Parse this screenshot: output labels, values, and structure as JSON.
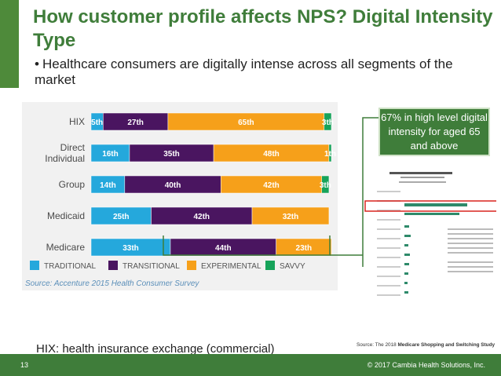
{
  "slide": {
    "title": "How customer profile affects NPS? Digital Intensity Type",
    "bullet": "Healthcare consumers are digitally intense across all segments of the market",
    "callout": "67% in high level digital intensity for aged 65 and above",
    "footnote": "HIX: health insurance exchange (commercial)",
    "source2_prefix": "Source: The 2018 ",
    "source2_bold": "Medicare Shopping and Switching Study",
    "page_number": "13",
    "copyright": "© 2017 Cambia Health Solutions, Inc."
  },
  "colors": {
    "traditional": "#25a8dc",
    "transitional": "#4a1560",
    "experimental": "#f6a01a",
    "savvy": "#16a35a",
    "brand_green": "#3f7d3a"
  },
  "chart_data": {
    "type": "bar",
    "stacked": true,
    "orientation": "horizontal",
    "categories": [
      "HIX",
      "Direct Individual",
      "Group",
      "Medicaid",
      "Medicare"
    ],
    "category_labels": [
      [
        "HIX"
      ],
      [
        "Direct",
        "Individual"
      ],
      [
        "Group"
      ],
      [
        "Medicaid"
      ],
      [
        "Medicare"
      ]
    ],
    "series": [
      {
        "name": "TRADITIONAL",
        "color": "#25a8dc",
        "values": [
          5,
          16,
          14,
          25,
          33
        ]
      },
      {
        "name": "TRANSITIONAL",
        "color": "#4a1560",
        "values": [
          27,
          35,
          40,
          42,
          44
        ]
      },
      {
        "name": "EXPERIMENTAL",
        "color": "#f6a01a",
        "values": [
          65,
          48,
          42,
          32,
          23
        ]
      },
      {
        "name": "SAVVY",
        "color": "#16a35a",
        "values": [
          3,
          1,
          3,
          0,
          0
        ]
      }
    ],
    "legend_position": "bottom",
    "source": "Source: Accenture 2015 Health Consumer Survey",
    "xlim": [
      0,
      100
    ]
  }
}
